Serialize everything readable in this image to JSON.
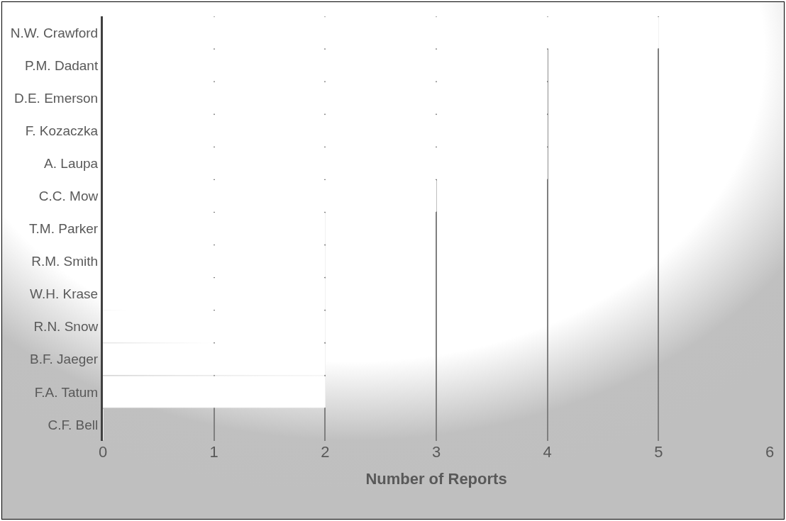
{
  "chart_data": {
    "type": "bar",
    "orientation": "horizontal",
    "xlabel": "Number of Reports",
    "categories": [
      "N.W. Crawford",
      "P.M. Dadant",
      "D.E. Emerson",
      "F. Kozaczka",
      "A. Laupa",
      "C.C. Mow",
      "T.M. Parker",
      "R.M. Smith",
      "W.H. Krase",
      "R.N. Snow",
      "B.F. Jaeger",
      "F.A. Tatum",
      "C.F. Bell"
    ],
    "values": [
      5,
      4,
      4,
      4,
      4,
      3,
      2,
      2,
      2,
      2,
      2,
      2,
      0
    ],
    "color": "#ffffff",
    "xlim": [
      0,
      6
    ],
    "xticks": [
      0,
      1,
      2,
      3,
      4,
      5,
      6
    ],
    "grid": "x"
  }
}
